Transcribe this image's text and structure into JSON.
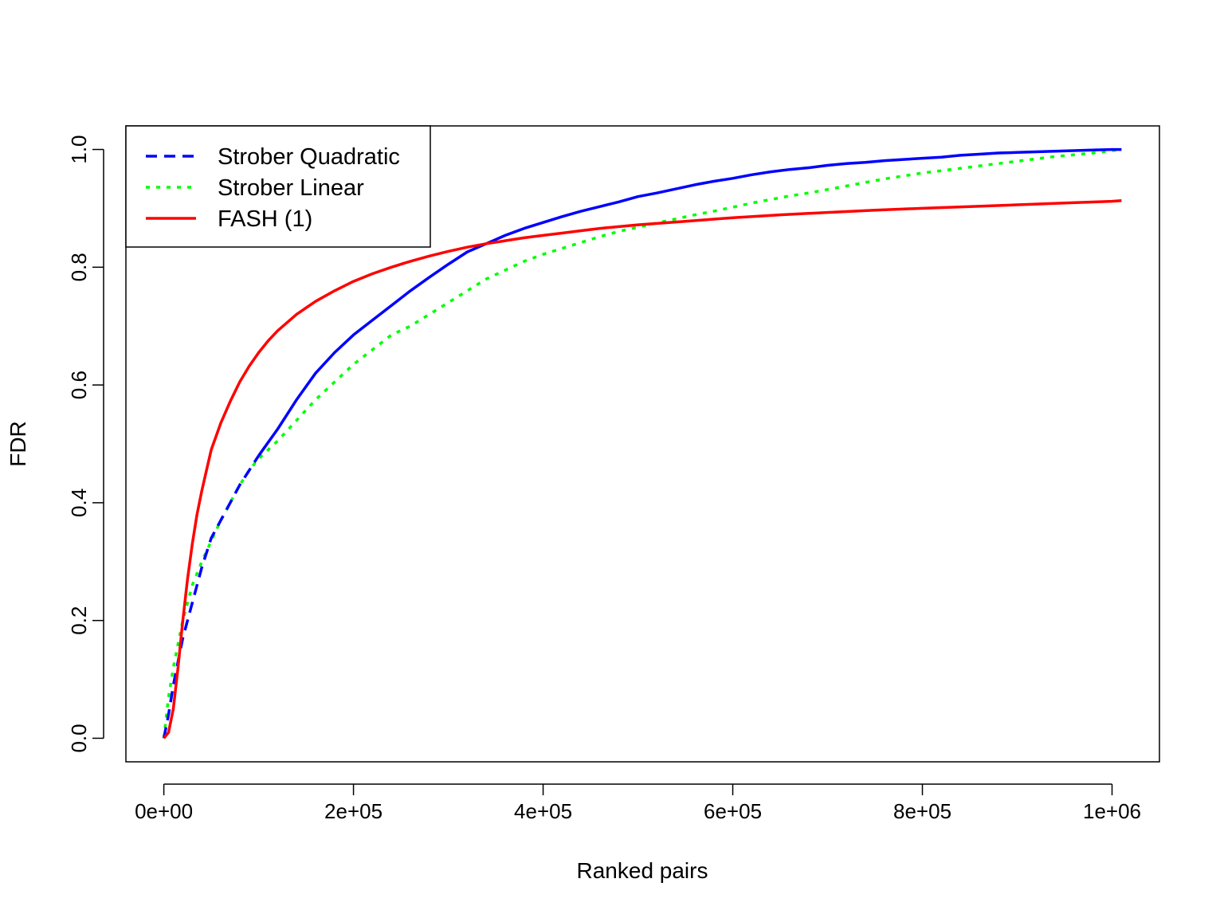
{
  "chart_data": {
    "type": "line",
    "title": "",
    "xlabel": "Ranked pairs",
    "ylabel": "FDR",
    "xlim": [
      -40000,
      1050000
    ],
    "ylim": [
      -0.04,
      1.04
    ],
    "xticks": [
      0,
      200000,
      400000,
      600000,
      800000,
      1000000
    ],
    "xtick_labels": [
      "0e+00",
      "2e+05",
      "4e+05",
      "6e+05",
      "8e+05",
      "1e+06"
    ],
    "yticks": [
      0.0,
      0.2,
      0.4,
      0.6,
      0.8,
      1.0
    ],
    "ytick_labels": [
      "0.0",
      "0.2",
      "0.4",
      "0.6",
      "0.8",
      "1.0"
    ],
    "grid": false,
    "legend_position": "top-left",
    "series": [
      {
        "name": "Strober Quadratic",
        "color": "#0000ff",
        "line_style": "dashed-then-solid",
        "x": [
          0,
          5000,
          10000,
          15000,
          20000,
          30000,
          40000,
          50000,
          60000,
          70000,
          80000,
          90000,
          100000,
          120000,
          140000,
          160000,
          180000,
          200000,
          220000,
          240000,
          260000,
          280000,
          300000,
          320000,
          340000,
          360000,
          380000,
          400000,
          420000,
          440000,
          460000,
          480000,
          500000,
          520000,
          540000,
          560000,
          580000,
          600000,
          620000,
          640000,
          660000,
          680000,
          700000,
          720000,
          740000,
          760000,
          780000,
          800000,
          820000,
          840000,
          860000,
          880000,
          900000,
          920000,
          940000,
          960000,
          980000,
          1000000,
          1010000
        ],
        "y": [
          0.0,
          0.04,
          0.09,
          0.13,
          0.17,
          0.23,
          0.29,
          0.34,
          0.37,
          0.4,
          0.43,
          0.455,
          0.48,
          0.525,
          0.575,
          0.62,
          0.655,
          0.685,
          0.71,
          0.735,
          0.76,
          0.783,
          0.805,
          0.826,
          0.84,
          0.854,
          0.866,
          0.876,
          0.886,
          0.895,
          0.903,
          0.911,
          0.92,
          0.926,
          0.933,
          0.94,
          0.946,
          0.951,
          0.957,
          0.962,
          0.966,
          0.969,
          0.973,
          0.976,
          0.978,
          0.981,
          0.983,
          0.985,
          0.987,
          0.99,
          0.992,
          0.994,
          0.995,
          0.996,
          0.997,
          0.998,
          0.999,
          1.0,
          1.0
        ]
      },
      {
        "name": "Strober Linear",
        "color": "#00ff00",
        "line_style": "dotted",
        "x": [
          0,
          5000,
          10000,
          15000,
          20000,
          30000,
          40000,
          50000,
          60000,
          70000,
          80000,
          90000,
          100000,
          120000,
          140000,
          160000,
          180000,
          200000,
          220000,
          240000,
          260000,
          280000,
          300000,
          320000,
          340000,
          360000,
          380000,
          400000,
          420000,
          440000,
          460000,
          480000,
          500000,
          520000,
          540000,
          560000,
          580000,
          600000,
          620000,
          640000,
          660000,
          680000,
          700000,
          720000,
          740000,
          760000,
          780000,
          800000,
          820000,
          840000,
          860000,
          880000,
          900000,
          920000,
          940000,
          960000,
          980000,
          1000000,
          1010000
        ],
        "y": [
          0.0,
          0.07,
          0.12,
          0.16,
          0.2,
          0.26,
          0.3,
          0.335,
          0.37,
          0.4,
          0.43,
          0.455,
          0.475,
          0.505,
          0.54,
          0.575,
          0.605,
          0.635,
          0.66,
          0.685,
          0.7,
          0.72,
          0.74,
          0.76,
          0.78,
          0.795,
          0.81,
          0.822,
          0.832,
          0.842,
          0.852,
          0.861,
          0.868,
          0.875,
          0.882,
          0.889,
          0.895,
          0.902,
          0.909,
          0.915,
          0.921,
          0.926,
          0.932,
          0.938,
          0.944,
          0.95,
          0.955,
          0.96,
          0.964,
          0.968,
          0.972,
          0.976,
          0.98,
          0.984,
          0.988,
          0.991,
          0.994,
          0.998,
          1.0
        ]
      },
      {
        "name": "FASH (1)",
        "color": "#ff0000",
        "line_style": "solid",
        "x": [
          0,
          5000,
          10000,
          15000,
          20000,
          25000,
          30000,
          35000,
          40000,
          45000,
          50000,
          60000,
          70000,
          80000,
          90000,
          100000,
          110000,
          120000,
          140000,
          160000,
          180000,
          200000,
          220000,
          240000,
          260000,
          280000,
          300000,
          320000,
          340000,
          360000,
          380000,
          400000,
          420000,
          440000,
          460000,
          480000,
          500000,
          550000,
          600000,
          650000,
          700000,
          750000,
          800000,
          850000,
          900000,
          950000,
          1000000,
          1010000
        ],
        "y": [
          0.0,
          0.01,
          0.05,
          0.12,
          0.2,
          0.27,
          0.33,
          0.38,
          0.42,
          0.455,
          0.49,
          0.535,
          0.572,
          0.605,
          0.632,
          0.655,
          0.675,
          0.692,
          0.72,
          0.742,
          0.76,
          0.776,
          0.789,
          0.8,
          0.81,
          0.819,
          0.827,
          0.834,
          0.84,
          0.845,
          0.85,
          0.854,
          0.858,
          0.862,
          0.866,
          0.869,
          0.872,
          0.878,
          0.884,
          0.889,
          0.893,
          0.897,
          0.9,
          0.903,
          0.906,
          0.909,
          0.912,
          0.913
        ]
      }
    ]
  }
}
